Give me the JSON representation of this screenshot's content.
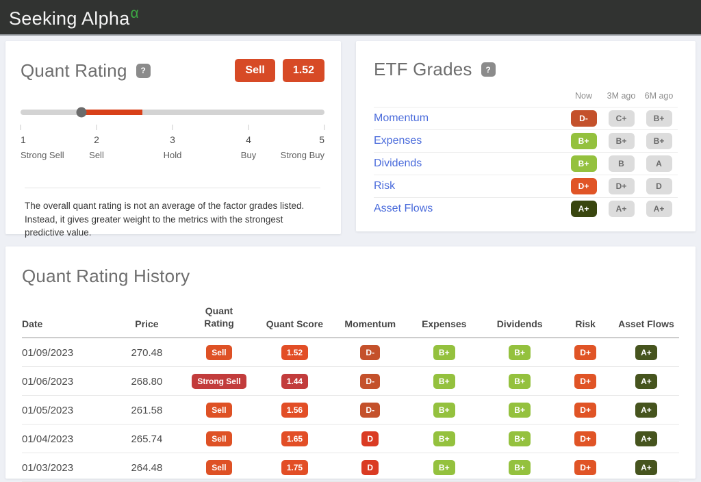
{
  "header": {
    "logo_text": "Seeking Alpha",
    "logo_alpha": "α"
  },
  "colors": {
    "accent_orange": "#d74a26",
    "slider_fill": "#d84019",
    "link_blue": "#4a6bdb",
    "gray_badge_bg": "#dcdcdc",
    "gray_badge_fg": "#696969"
  },
  "quant_rating": {
    "title": "Quant Rating",
    "help_icon": "?",
    "rating_label": "Sell",
    "score": "1.52",
    "slider": {
      "value": 1.52,
      "ticks": [
        {
          "num": "1",
          "label": "Strong Sell"
        },
        {
          "num": "2",
          "label": "Sell"
        },
        {
          "num": "3",
          "label": "Hold"
        },
        {
          "num": "4",
          "label": "Buy"
        },
        {
          "num": "5",
          "label": "Strong Buy"
        }
      ]
    },
    "description": "The overall quant rating is not an average of the factor grades listed. Instead, it gives greater weight to the metrics with the strongest predictive value."
  },
  "etf_grades": {
    "title": "ETF Grades",
    "help_icon": "?",
    "columns": [
      "Now",
      "3M ago",
      "6M ago"
    ],
    "rows": [
      {
        "label": "Momentum",
        "grades": [
          {
            "text": "D-",
            "bg": "#c4512b",
            "fg": "#ffffff"
          },
          {
            "text": "C+",
            "bg": "#dcdcdc",
            "fg": "#696969"
          },
          {
            "text": "B+",
            "bg": "#dcdcdc",
            "fg": "#696969"
          }
        ]
      },
      {
        "label": "Expenses",
        "grades": [
          {
            "text": "B+",
            "bg": "#94c13e",
            "fg": "#ffffff"
          },
          {
            "text": "B+",
            "bg": "#dcdcdc",
            "fg": "#696969"
          },
          {
            "text": "B+",
            "bg": "#dcdcdc",
            "fg": "#696969"
          }
        ]
      },
      {
        "label": "Dividends",
        "grades": [
          {
            "text": "B+",
            "bg": "#94c13e",
            "fg": "#ffffff"
          },
          {
            "text": "B",
            "bg": "#dcdcdc",
            "fg": "#696969"
          },
          {
            "text": "A",
            "bg": "#dcdcdc",
            "fg": "#696969"
          }
        ]
      },
      {
        "label": "Risk",
        "grades": [
          {
            "text": "D+",
            "bg": "#e05426",
            "fg": "#ffffff"
          },
          {
            "text": "D+",
            "bg": "#dcdcdc",
            "fg": "#696969"
          },
          {
            "text": "D",
            "bg": "#dcdcdc",
            "fg": "#696969"
          }
        ]
      },
      {
        "label": "Asset Flows",
        "grades": [
          {
            "text": "A+",
            "bg": "#39460f",
            "fg": "#ffffff"
          },
          {
            "text": "A+",
            "bg": "#dcdcdc",
            "fg": "#696969"
          },
          {
            "text": "A+",
            "bg": "#dcdcdc",
            "fg": "#696969"
          }
        ]
      }
    ]
  },
  "history": {
    "title": "Quant Rating History",
    "columns": [
      "Date",
      "Price",
      "Quant Rating",
      "Quant Score",
      "Momentum",
      "Expenses",
      "Dividends",
      "Risk",
      "Asset Flows"
    ],
    "rows": [
      {
        "date": "01/09/2023",
        "price": "270.48",
        "badges": [
          {
            "text": "Sell",
            "bg": "#de5125"
          },
          {
            "text": "1.52",
            "bg": "#e24e26"
          },
          {
            "text": "D-",
            "bg": "#c4512b"
          },
          {
            "text": "B+",
            "bg": "#94c13e"
          },
          {
            "text": "B+",
            "bg": "#94c13e"
          },
          {
            "text": "D+",
            "bg": "#e05426"
          },
          {
            "text": "A+",
            "bg": "#46541e"
          }
        ]
      },
      {
        "date": "01/06/2023",
        "price": "268.80",
        "badges": [
          {
            "text": "Strong Sell",
            "bg": "#c23c3c"
          },
          {
            "text": "1.44",
            "bg": "#c23c3c"
          },
          {
            "text": "D-",
            "bg": "#c4512b"
          },
          {
            "text": "B+",
            "bg": "#94c13e"
          },
          {
            "text": "B+",
            "bg": "#94c13e"
          },
          {
            "text": "D+",
            "bg": "#e05426"
          },
          {
            "text": "A+",
            "bg": "#46541e"
          }
        ]
      },
      {
        "date": "01/05/2023",
        "price": "261.58",
        "badges": [
          {
            "text": "Sell",
            "bg": "#de5125"
          },
          {
            "text": "1.56",
            "bg": "#e24e26"
          },
          {
            "text": "D-",
            "bg": "#c4512b"
          },
          {
            "text": "B+",
            "bg": "#94c13e"
          },
          {
            "text": "B+",
            "bg": "#94c13e"
          },
          {
            "text": "D+",
            "bg": "#e05426"
          },
          {
            "text": "A+",
            "bg": "#46541e"
          }
        ]
      },
      {
        "date": "01/04/2023",
        "price": "265.74",
        "badges": [
          {
            "text": "Sell",
            "bg": "#de5125"
          },
          {
            "text": "1.65",
            "bg": "#e24e26"
          },
          {
            "text": "D",
            "bg": "#da3b23"
          },
          {
            "text": "B+",
            "bg": "#94c13e"
          },
          {
            "text": "B+",
            "bg": "#94c13e"
          },
          {
            "text": "D+",
            "bg": "#e05426"
          },
          {
            "text": "A+",
            "bg": "#46541e"
          }
        ]
      },
      {
        "date": "01/03/2023",
        "price": "264.48",
        "badges": [
          {
            "text": "Sell",
            "bg": "#de5125"
          },
          {
            "text": "1.75",
            "bg": "#e24e26"
          },
          {
            "text": "D",
            "bg": "#da3b23"
          },
          {
            "text": "B+",
            "bg": "#94c13e"
          },
          {
            "text": "B+",
            "bg": "#94c13e"
          },
          {
            "text": "D+",
            "bg": "#e05426"
          },
          {
            "text": "A+",
            "bg": "#46541e"
          }
        ]
      }
    ]
  }
}
